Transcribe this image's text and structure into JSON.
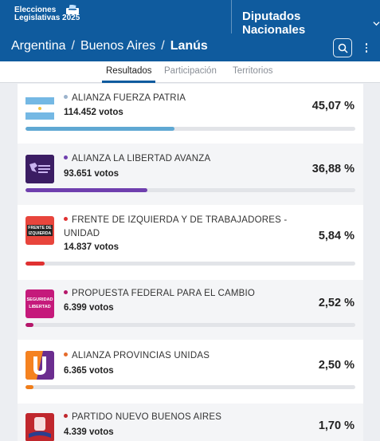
{
  "header": {
    "logo_line1": "Elecciones",
    "logo_line2": "Legislativas 2025",
    "category_selector": "Diputados Nacionales"
  },
  "breadcrumb": {
    "country": "Argentina",
    "province": "Buenos Aires",
    "district": "Lanús"
  },
  "tabs": [
    {
      "label": "Resultados",
      "active": true
    },
    {
      "label": "Participación",
      "active": false
    },
    {
      "label": "Territorios",
      "active": false
    }
  ],
  "colors": {
    "brand": "#0f5b9e"
  },
  "results": [
    {
      "party": "ALIANZA FUERZA PATRIA",
      "votes": "114.452 votos",
      "percent": "45,07 %",
      "share": 45.07,
      "color": "#5fa8d3",
      "dot": "#9bb3cc",
      "logo": "argentine-flag-icon"
    },
    {
      "party": "ALIANZA LA LIBERTAD AVANZA",
      "votes": "93.651 votos",
      "percent": "36,88 %",
      "share": 36.88,
      "color": "#6f3fae",
      "dot": "#6f3fae",
      "logo": "la-libertad-avanza-logo"
    },
    {
      "party": "FRENTE DE IZQUIERDA Y DE TRABAJADORES - UNIDAD",
      "votes": "14.837 votos",
      "percent": "5,84 %",
      "share": 5.84,
      "color": "#e03131",
      "dot": "#e03131",
      "logo": "frente-de-izquierda-logo",
      "logo_text": "FRENTE DE IZQUIERDA"
    },
    {
      "party": "PROPUESTA FEDERAL PARA EL CAMBIO",
      "votes": "6.399 votos",
      "percent": "2,52 %",
      "share": 2.52,
      "color": "#b5176a",
      "dot": "#b5176a",
      "logo": "seguridad-libertad-logo",
      "logo_text": "SEGURIDAD LIBERTAD"
    },
    {
      "party": "ALIANZA PROVINCIAS UNIDAS",
      "votes": "6.365 votos",
      "percent": "2,50 %",
      "share": 2.5,
      "color": "#f07d1a",
      "dot": "#e56b2c",
      "logo": "provincias-unidas-logo"
    },
    {
      "party": "PARTIDO NUEVO BUENOS AIRES",
      "votes": "4.339 votos",
      "percent": "1,70 %",
      "share": 1.7,
      "color": "#c0272d",
      "dot": "#c0272d",
      "logo": "nuevo-buenos-aires-logo"
    }
  ]
}
